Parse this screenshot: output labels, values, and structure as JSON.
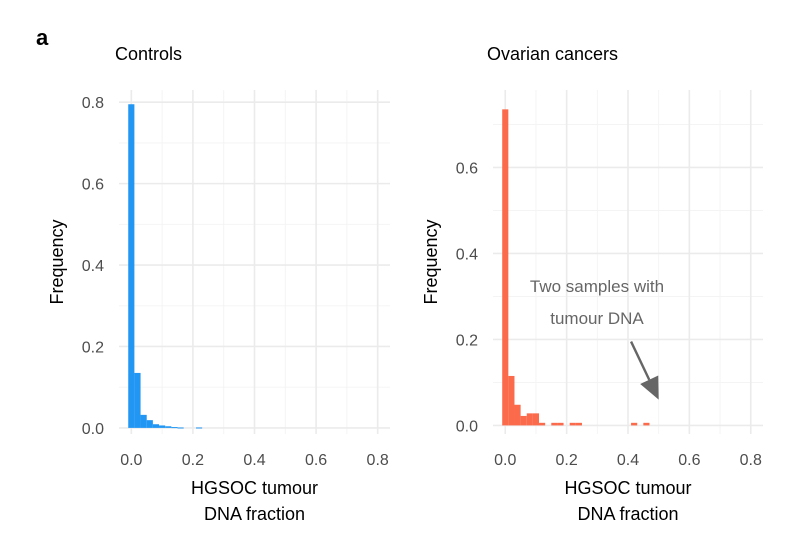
{
  "panel_label": "a",
  "chart_data": [
    {
      "type": "histogram",
      "title": "Controls",
      "xlabel": [
        "HGSOC tumour",
        "DNA fraction"
      ],
      "ylabel": "Frequency",
      "bar_color": "#2196f3",
      "xlim": [
        -0.04,
        0.84
      ],
      "ylim": [
        -0.015,
        0.83
      ],
      "x_ticks": [
        "0.0",
        "0.2",
        "0.4",
        "0.6",
        "0.8"
      ],
      "y_ticks": [
        "0.0",
        "0.2",
        "0.4",
        "0.6",
        "0.8"
      ],
      "bin_width": 0.02,
      "bins": [
        {
          "x_start": -0.01,
          "value": 0.795
        },
        {
          "x_start": 0.01,
          "value": 0.135
        },
        {
          "x_start": 0.03,
          "value": 0.032
        },
        {
          "x_start": 0.05,
          "value": 0.019
        },
        {
          "x_start": 0.07,
          "value": 0.009
        },
        {
          "x_start": 0.09,
          "value": 0.006
        },
        {
          "x_start": 0.11,
          "value": 0.004
        },
        {
          "x_start": 0.13,
          "value": 0.002
        },
        {
          "x_start": 0.15,
          "value": 0.001
        },
        {
          "x_start": 0.21,
          "value": 0.001
        }
      ]
    },
    {
      "type": "histogram",
      "title": "Ovarian cancers",
      "xlabel": [
        "HGSOC tumour",
        "DNA fraction"
      ],
      "ylabel": "Frequency",
      "bar_color": "#fb6a4a",
      "xlim": [
        -0.04,
        0.84
      ],
      "ylim": [
        -0.02,
        0.78
      ],
      "x_ticks": [
        "0.0",
        "0.2",
        "0.4",
        "0.6",
        "0.8"
      ],
      "y_ticks": [
        "0.0",
        "0.2",
        "0.4",
        "0.6"
      ],
      "bin_width": 0.02,
      "bins": [
        {
          "x_start": -0.01,
          "value": 0.735
        },
        {
          "x_start": 0.01,
          "value": 0.115
        },
        {
          "x_start": 0.03,
          "value": 0.048
        },
        {
          "x_start": 0.05,
          "value": 0.022
        },
        {
          "x_start": 0.07,
          "value": 0.028
        },
        {
          "x_start": 0.09,
          "value": 0.028
        },
        {
          "x_start": 0.11,
          "value": 0.006
        },
        {
          "x_start": 0.15,
          "value": 0.006
        },
        {
          "x_start": 0.17,
          "value": 0.006
        },
        {
          "x_start": 0.21,
          "value": 0.006
        },
        {
          "x_start": 0.23,
          "value": 0.006
        },
        {
          "x_start": 0.41,
          "value": 0.006
        },
        {
          "x_start": 0.45,
          "value": 0.006
        }
      ],
      "annotation": {
        "text": [
          "Two samples with",
          "tumour DNA"
        ],
        "color": "#666666",
        "arrow_from": [
          0.41,
          0.195
        ],
        "arrow_to": [
          0.5,
          0.06
        ]
      }
    }
  ]
}
